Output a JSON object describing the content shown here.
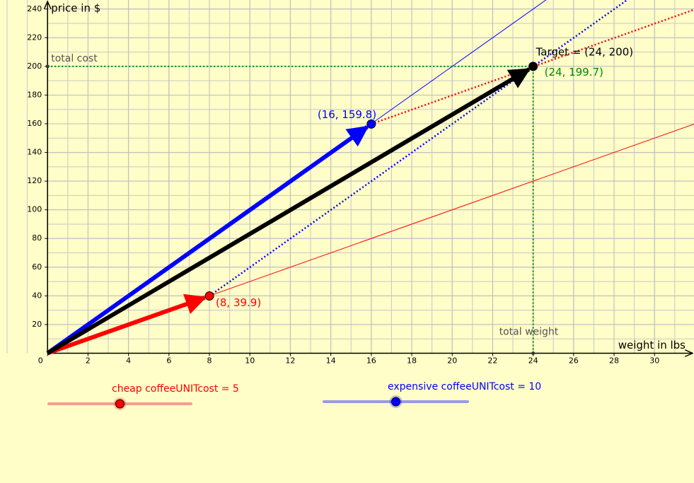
{
  "chart_data": {
    "type": "vector",
    "x_label": "weight in lbs",
    "y_label": "price in $",
    "xlim": [
      -2.35,
      31.95
    ],
    "ylim": [
      -90.5,
      246.3
    ],
    "xticks": [
      0,
      2,
      4,
      6,
      8,
      10,
      12,
      14,
      16,
      18,
      20,
      22,
      24,
      26,
      28,
      30
    ],
    "yticks": [
      20,
      40,
      60,
      80,
      100,
      120,
      140,
      160,
      180,
      200,
      220,
      240
    ],
    "grid": true,
    "points": [
      {
        "x": 8,
        "y": 39.9,
        "label": "(8, 39.9)",
        "color": "#ff0000"
      },
      {
        "x": 16,
        "y": 159.8,
        "label": "(16, 159.8)",
        "color": "#0000ff"
      },
      {
        "x": 24,
        "y": 199.7,
        "label": "(24, 199.7)",
        "color": "#008800"
      },
      {
        "x": 24,
        "y": 200,
        "label": "Target = (24, 200)",
        "color": "#000000"
      }
    ],
    "guides": {
      "total_cost": "total cost",
      "total_weight": "total weight"
    },
    "sliders": [
      {
        "label": "cheap coffeeUNITcost = 5",
        "value": 5,
        "color": "#ff0000"
      },
      {
        "label": "expensive coffeeUNITcost = 10",
        "value": 10,
        "color": "#0000ff"
      }
    ]
  }
}
